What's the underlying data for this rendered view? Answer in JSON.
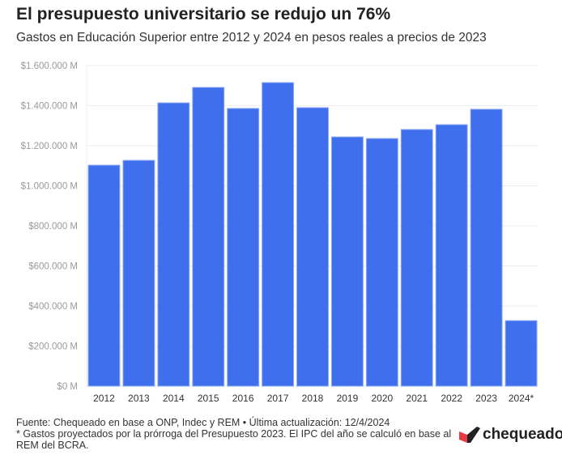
{
  "title": "El presupuesto universitario se redujo un 76%",
  "subtitle": "Gastos en Educación Superior entre 2012 y 2024 en pesos reales a precios de 2023",
  "footer": {
    "source": "Fuente: Chequeado en base a ONP, Indec y REM • Última actualización: 12/4/2024",
    "note": "* Gastos proyectados por la prórroga del Presupuesto 2023. El IPC del año se calculó en base al REM del BCRA."
  },
  "logo": {
    "text": "chequeado",
    "colors": [
      "#e63946",
      "#222222"
    ]
  },
  "chart_data": {
    "type": "bar",
    "categories": [
      "2012",
      "2013",
      "2014",
      "2015",
      "2016",
      "2017",
      "2018",
      "2019",
      "2020",
      "2021",
      "2022",
      "2023",
      "2024*"
    ],
    "values": [
      1103000,
      1127000,
      1414000,
      1491000,
      1386000,
      1515000,
      1390000,
      1244000,
      1236000,
      1281000,
      1305000,
      1382000,
      327000
    ],
    "ylim": [
      0,
      1600000
    ],
    "yticks": [
      0,
      200000,
      400000,
      600000,
      800000,
      1000000,
      1200000,
      1400000,
      1600000
    ],
    "ytick_labels": [
      "$0 M",
      "$200.000 M",
      "$400.000 M",
      "$600.000 M",
      "$800.000 M",
      "$1.000.000 M",
      "$1.200.000 M",
      "$1.400.000 M",
      "$1.600.000 M"
    ],
    "grid": true,
    "color": "#3f6fec"
  }
}
